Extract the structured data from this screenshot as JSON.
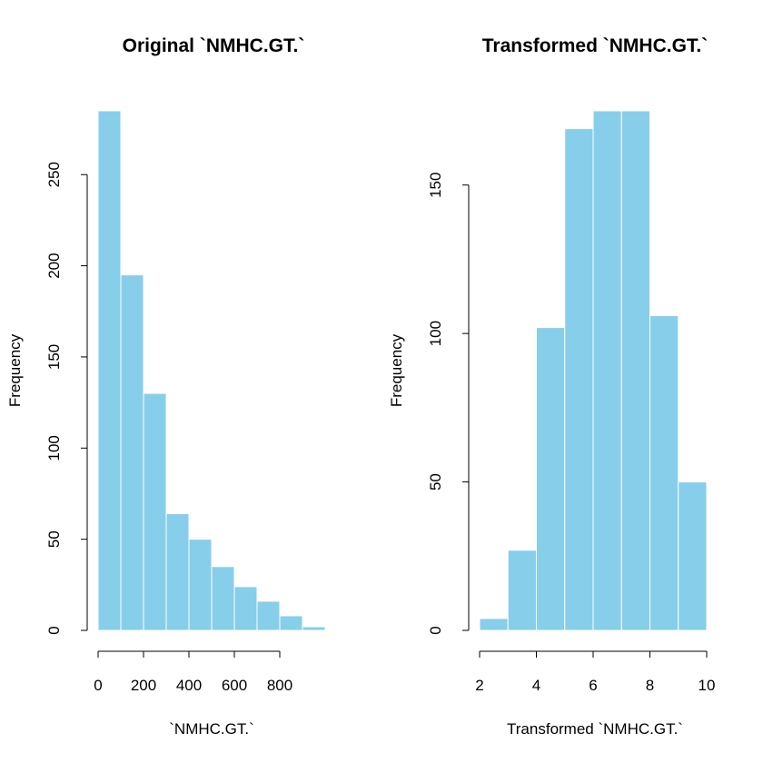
{
  "chart_data": [
    {
      "type": "bar",
      "title": "Original `NMHC.GT.`",
      "xlabel": "`NMHC.GT.`",
      "ylabel": "Frequency",
      "bar_color": "#87CEEB",
      "bins": [
        [
          0,
          100
        ],
        [
          100,
          200
        ],
        [
          200,
          300
        ],
        [
          300,
          400
        ],
        [
          400,
          500
        ],
        [
          500,
          600
        ],
        [
          600,
          700
        ],
        [
          700,
          800
        ],
        [
          800,
          900
        ],
        [
          900,
          1000
        ]
      ],
      "values": [
        285,
        195,
        130,
        64,
        50,
        35,
        24,
        16,
        8,
        2
      ],
      "xlim": [
        0,
        1000
      ],
      "ylim": [
        0,
        285
      ],
      "xticks": [
        0,
        200,
        400,
        600,
        800
      ],
      "yticks": [
        0,
        50,
        100,
        150,
        200,
        250
      ],
      "grid": false
    },
    {
      "type": "bar",
      "title": "Transformed `NMHC.GT.`",
      "xlabel": "Transformed `NMHC.GT.`",
      "ylabel": "Frequency",
      "bar_color": "#87CEEB",
      "bins": [
        [
          2,
          3
        ],
        [
          3,
          4
        ],
        [
          4,
          5
        ],
        [
          5,
          6
        ],
        [
          6,
          7
        ],
        [
          7,
          8
        ],
        [
          8,
          9
        ],
        [
          9,
          10
        ]
      ],
      "values": [
        4,
        27,
        102,
        169,
        175,
        175,
        106,
        50
      ],
      "xlim": [
        2,
        10
      ],
      "ylim": [
        0,
        175
      ],
      "xticks": [
        2,
        4,
        6,
        8,
        10
      ],
      "yticks": [
        0,
        50,
        100,
        150
      ],
      "grid": false
    }
  ]
}
